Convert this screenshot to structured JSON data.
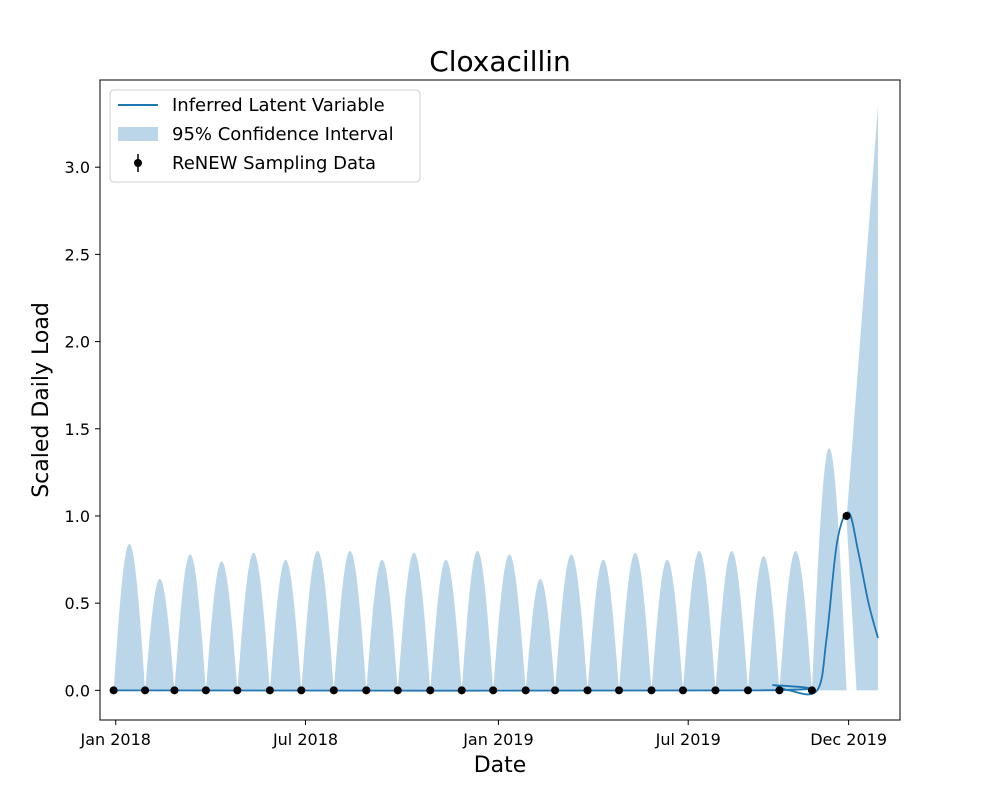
{
  "chart_data": {
    "type": "line",
    "title": "Cloxacillin",
    "xlabel": "Date",
    "ylabel": "Scaled Daily Load",
    "xlim": [
      "2017-12-17",
      "2020-01-19"
    ],
    "ylim": [
      -0.17,
      3.5
    ],
    "grid": false,
    "legend_position": "top-left",
    "x_ticks": [
      {
        "date": "2018-01-01",
        "label": "Jan 2018"
      },
      {
        "date": "2018-07-01",
        "label": "Jul 2018"
      },
      {
        "date": "2019-01-01",
        "label": "Jan 2019"
      },
      {
        "date": "2019-07-01",
        "label": "Jul 2019"
      },
      {
        "date": "2019-12-01",
        "label": "Dec 2019"
      }
    ],
    "y_ticks": [
      {
        "value": 0.0,
        "label": "0.0"
      },
      {
        "value": 0.5,
        "label": "0.5"
      },
      {
        "value": 1.0,
        "label": "1.0"
      },
      {
        "value": 1.5,
        "label": "1.5"
      },
      {
        "value": 2.0,
        "label": "2.0"
      },
      {
        "value": 2.5,
        "label": "2.5"
      },
      {
        "value": 3.0,
        "label": "3.0"
      }
    ],
    "legend": [
      {
        "label": "Inferred Latent Variable",
        "kind": "line"
      },
      {
        "label": "95% Confidence Interval",
        "kind": "band"
      },
      {
        "label": "ReNEW Sampling Data",
        "kind": "errorbar-point"
      }
    ],
    "colors": {
      "line": "#1f77b4",
      "band": "#bcd6e9",
      "points": "#000000"
    },
    "sampling_data": [
      {
        "date": "2017-12-30",
        "value": 0
      },
      {
        "date": "2018-01-29",
        "value": 0
      },
      {
        "date": "2018-02-26",
        "value": 0
      },
      {
        "date": "2018-03-28",
        "value": 0
      },
      {
        "date": "2018-04-27",
        "value": 0
      },
      {
        "date": "2018-05-28",
        "value": 0
      },
      {
        "date": "2018-06-27",
        "value": 0
      },
      {
        "date": "2018-07-28",
        "value": 0
      },
      {
        "date": "2018-08-28",
        "value": 0
      },
      {
        "date": "2018-09-27",
        "value": 0
      },
      {
        "date": "2018-10-28",
        "value": 0
      },
      {
        "date": "2018-11-27",
        "value": 0
      },
      {
        "date": "2018-12-27",
        "value": 0
      },
      {
        "date": "2019-01-27",
        "value": 0
      },
      {
        "date": "2019-02-24",
        "value": 0
      },
      {
        "date": "2019-03-27",
        "value": 0
      },
      {
        "date": "2019-04-26",
        "value": 0
      },
      {
        "date": "2019-05-27",
        "value": 0
      },
      {
        "date": "2019-06-26",
        "value": 0
      },
      {
        "date": "2019-07-27",
        "value": 0
      },
      {
        "date": "2019-08-27",
        "value": 0
      },
      {
        "date": "2019-09-26",
        "value": 0
      },
      {
        "date": "2019-10-27",
        "value": 0
      },
      {
        "date": "2019-11-29",
        "value": 1.0
      }
    ],
    "ci_peaks": [
      {
        "date": "2018-01-13",
        "upper": 0.84
      },
      {
        "date": "2018-02-12",
        "upper": 0.64
      },
      {
        "date": "2018-03-13",
        "upper": 0.78
      },
      {
        "date": "2018-04-12",
        "upper": 0.74
      },
      {
        "date": "2018-05-12",
        "upper": 0.79
      },
      {
        "date": "2018-06-12",
        "upper": 0.75
      },
      {
        "date": "2018-07-13",
        "upper": 0.8
      },
      {
        "date": "2018-08-12",
        "upper": 0.8
      },
      {
        "date": "2018-09-12",
        "upper": 0.75
      },
      {
        "date": "2018-10-12",
        "upper": 0.79
      },
      {
        "date": "2018-11-12",
        "upper": 0.75
      },
      {
        "date": "2018-12-12",
        "upper": 0.8
      },
      {
        "date": "2019-01-12",
        "upper": 0.78
      },
      {
        "date": "2019-02-10",
        "upper": 0.64
      },
      {
        "date": "2019-03-12",
        "upper": 0.78
      },
      {
        "date": "2019-04-11",
        "upper": 0.75
      },
      {
        "date": "2019-05-11",
        "upper": 0.79
      },
      {
        "date": "2019-06-11",
        "upper": 0.75
      },
      {
        "date": "2019-07-12",
        "upper": 0.8
      },
      {
        "date": "2019-08-11",
        "upper": 0.8
      },
      {
        "date": "2019-09-11",
        "upper": 0.77
      },
      {
        "date": "2019-10-11",
        "upper": 0.8
      },
      {
        "date": "2019-11-12",
        "upper": 1.39
      }
    ],
    "latent_variable": [
      {
        "date": "2017-12-30",
        "value": 0
      },
      {
        "date": "2019-09-05",
        "value": 0
      },
      {
        "date": "2019-09-20",
        "value": 0.03
      },
      {
        "date": "2019-10-05",
        "value": 0
      },
      {
        "date": "2019-11-01",
        "value": 0
      },
      {
        "date": "2019-11-10",
        "value": 0.3
      },
      {
        "date": "2019-11-20",
        "value": 0.85
      },
      {
        "date": "2019-12-01",
        "value": 1.02
      },
      {
        "date": "2019-12-10",
        "value": 0.8
      },
      {
        "date": "2019-12-20",
        "value": 0.5
      },
      {
        "date": "2019-12-29",
        "value": 0.3
      }
    ],
    "final_band": {
      "start": "2019-11-29",
      "end": "2019-12-29",
      "upper_end": 3.35
    }
  }
}
